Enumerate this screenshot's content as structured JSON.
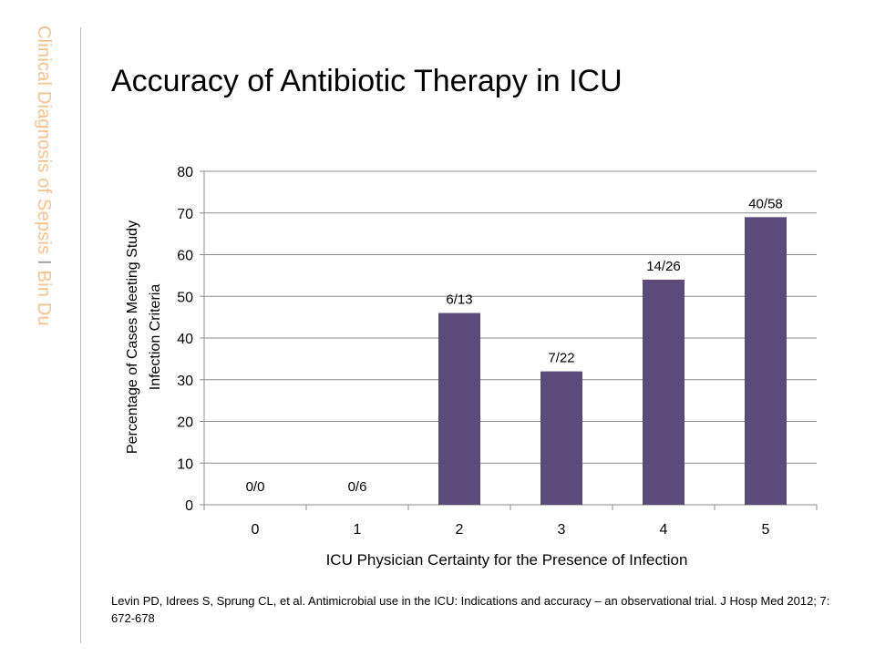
{
  "sidebar": {
    "title": "Clinical Diagnosis of Sepsis",
    "separator": "I",
    "author": "Bin Du"
  },
  "slide": {
    "title": "Accuracy of Antibiotic Therapy in ICU",
    "citation": "Levin PD, Idrees S, Sprung CL, et al. Antimicrobial use in the ICU: Indications and accuracy – an observational trial. J Hosp Med 2012; 7: 672-678"
  },
  "colors": {
    "bar": "#5c4a7a",
    "grid": "#8c8c8c",
    "sidebar_text": "#f5c28f"
  },
  "chart_data": {
    "type": "bar",
    "title": "",
    "xlabel": "ICU Physician Certainty for the Presence of Infection",
    "ylabel_lines": [
      "Percentage of Cases Meeting Study",
      "Infection Criteria"
    ],
    "categories": [
      "0",
      "1",
      "2",
      "3",
      "4",
      "5"
    ],
    "values": [
      0,
      0,
      46,
      32,
      54,
      69
    ],
    "data_labels": [
      "0/0",
      "0/6",
      "6/13",
      "7/22",
      "14/26",
      "40/58"
    ],
    "ylim": [
      0,
      80
    ],
    "yticks": [
      0,
      10,
      20,
      30,
      40,
      50,
      60,
      70,
      80
    ],
    "grid": true,
    "legend": "none"
  }
}
